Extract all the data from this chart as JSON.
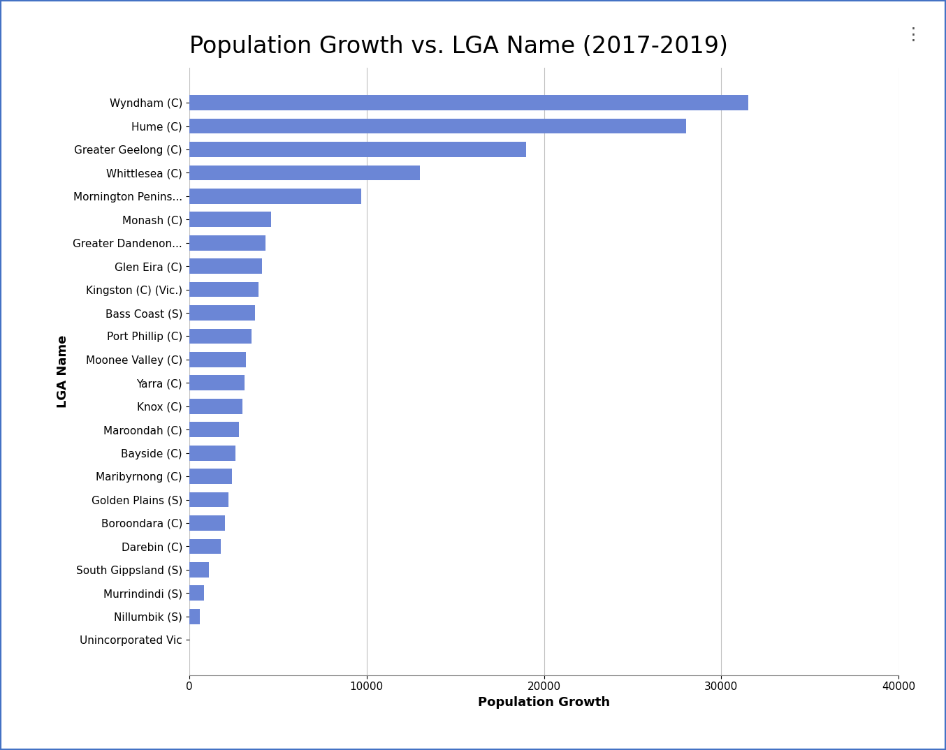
{
  "title": "Population Growth vs. LGA Name (2017-2019)",
  "xlabel": "Population Growth",
  "ylabel": "LGA Name",
  "bar_color": "#6b86d6",
  "categories": [
    "Wyndham (C)",
    "Hume (C)",
    "Greater Geelong (C)",
    "Whittlesea (C)",
    "Mornington Penins...",
    "Monash (C)",
    "Greater Dandenon...",
    "Glen Eira (C)",
    "Kingston (C) (Vic.)",
    "Bass Coast (S)",
    "Port Phillip (C)",
    "Moonee Valley (C)",
    "Yarra (C)",
    "Knox (C)",
    "Maroondah (C)",
    "Bayside (C)",
    "Maribyrnong (C)",
    "Golden Plains (S)",
    "Boroondara (C)",
    "Darebin (C)",
    "South Gippsland (S)",
    "Murrindindi (S)",
    "Nillumbik (S)",
    "Unincorporated Vic"
  ],
  "values": [
    31500,
    28000,
    19000,
    13000,
    9700,
    4600,
    4300,
    4100,
    3900,
    3700,
    3500,
    3200,
    3100,
    3000,
    2800,
    2600,
    2400,
    2200,
    2000,
    1800,
    1100,
    850,
    600,
    25
  ],
  "xlim": [
    0,
    40000
  ],
  "xticks": [
    0,
    10000,
    20000,
    30000,
    40000
  ],
  "grid_color": "#c0c0c0",
  "background_color": "#ffffff",
  "title_fontsize": 24,
  "axis_label_fontsize": 13,
  "tick_fontsize": 11,
  "border_color": "#4472c4",
  "border_width": 3
}
